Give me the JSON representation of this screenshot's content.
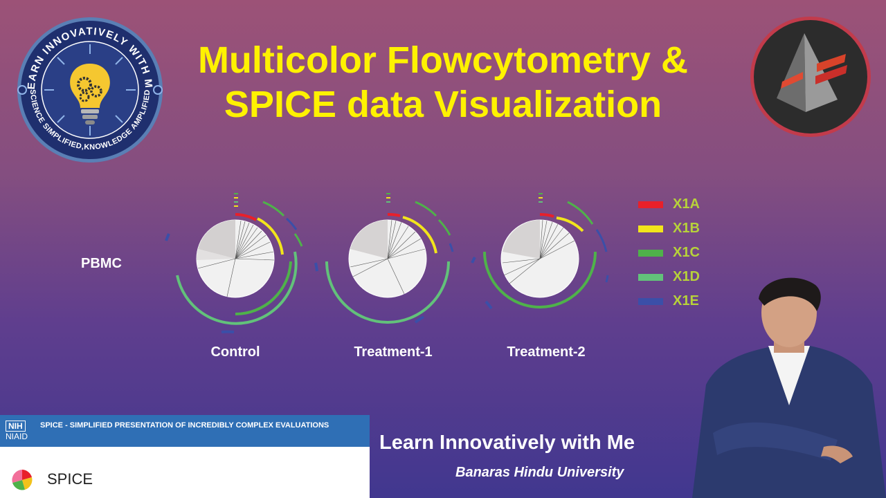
{
  "title_line1": "Multicolor Flowcytometry &",
  "title_line2": "SPICE data Visualization",
  "left_badge": {
    "top_text": "LEARN INNOVATIVELY WITH ME",
    "bottom_text": "SCIENCE SIMPLIFIED,KNOWLEDGE AMPLIFIED",
    "icon": "lightbulb-gears-icon"
  },
  "right_badge": {
    "icon": "pyramid-logo-icon"
  },
  "row_label": "PBMC",
  "pies": [
    {
      "label": "Control"
    },
    {
      "label": "Treatment-1"
    },
    {
      "label": "Treatment-2"
    }
  ],
  "legend": [
    {
      "label": "X1A",
      "color": "#e8202a"
    },
    {
      "label": "X1B",
      "color": "#f2e51b"
    },
    {
      "label": "X1C",
      "color": "#4fb24a"
    },
    {
      "label": "X1D",
      "color": "#62c27a"
    },
    {
      "label": "X1E",
      "color": "#3b4fa8"
    }
  ],
  "nih_panel": {
    "logo_top": "NIH",
    "logo_bottom": "NIAID",
    "header_text": "SPICE - SIMPLIFIED PRESENTATION OF INCREDIBLY COMPLEX EVALUATIONS",
    "app_name": "SPICE"
  },
  "footer": {
    "channel": "Learn Innovatively with Me",
    "university": "Banaras Hindu University"
  }
}
